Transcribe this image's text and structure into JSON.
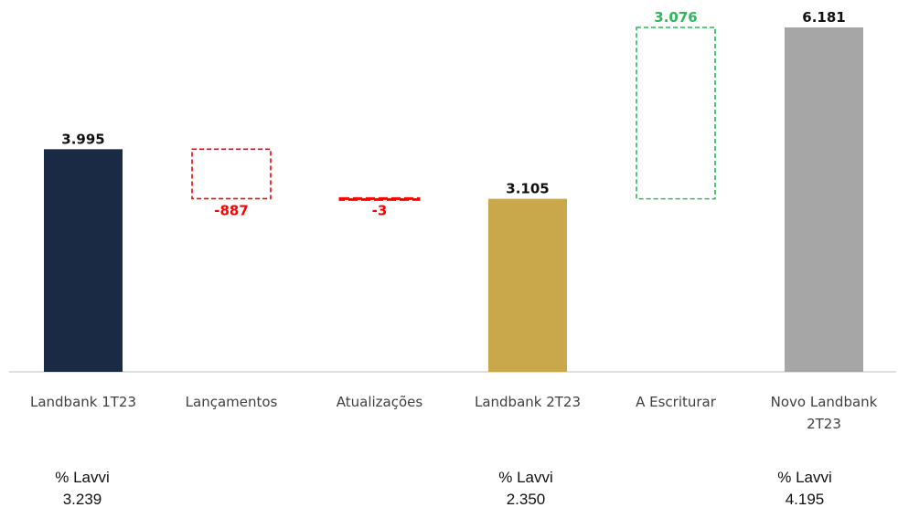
{
  "chart_data": {
    "type": "bar",
    "subtype": "waterfall",
    "categories": [
      "Landbank 1T23",
      "Lançamentos",
      "Atualizações",
      "Landbank 2T23",
      "A Escriturar",
      "Novo Landbank 2T23"
    ],
    "category_lines": [
      [
        "Landbank 1T23"
      ],
      [
        "Lançamentos"
      ],
      [
        "Atualizações"
      ],
      [
        "Landbank 2T23"
      ],
      [
        "A Escriturar"
      ],
      [
        "Novo Landbank",
        "2T23"
      ]
    ],
    "values": [
      3995,
      -887,
      -3,
      3105,
      3076,
      6181
    ],
    "kinds": [
      "total",
      "delta",
      "delta",
      "total",
      "delta",
      "total"
    ],
    "value_labels": [
      "3.995",
      "-887",
      "-3",
      "3.105",
      "3.076",
      "6.181"
    ],
    "colors": [
      "#1b2a44",
      "#ff0000",
      "#ff0000",
      "#c9a74b",
      "#2fb85a",
      "#a6a6a6"
    ],
    "label_colors": [
      "#111111",
      "#ff0000",
      "#ff0000",
      "#111111",
      "#2fb85a",
      "#111111"
    ],
    "ylim": [
      0,
      6181
    ],
    "grid": false,
    "legend": "none"
  },
  "footnotes": [
    {
      "label": "% Lavvi",
      "value": "3.239"
    },
    {
      "label": "% Lavvi",
      "value": "2.350"
    },
    {
      "label": "% Lavvi",
      "value": "4.195"
    }
  ]
}
